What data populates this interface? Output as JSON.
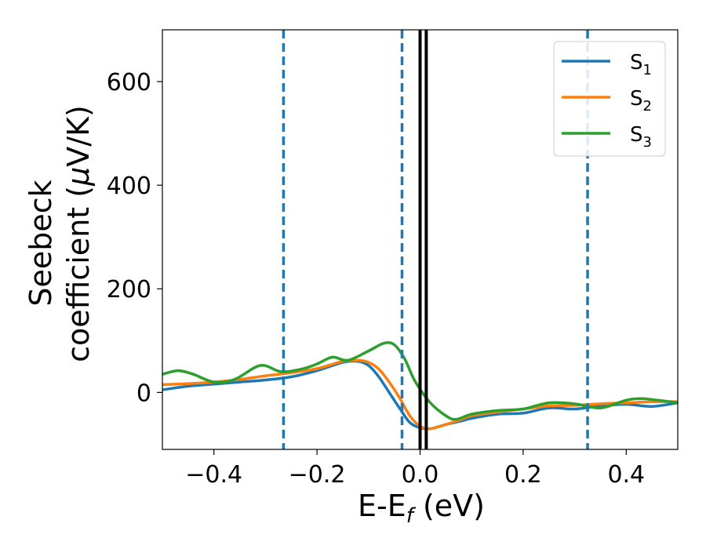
{
  "chart_data": {
    "type": "line",
    "xlabel": "E-E",
    "xlabel_sub": "f",
    "xlabel_unit": " (eV)",
    "ylabel_line1": "Seebeck",
    "ylabel_line2": "coefficient  (",
    "ylabel_mu": "μ",
    "ylabel_unit": "V/K)",
    "xlim": [
      -0.5,
      0.5
    ],
    "ylim": [
      -110,
      700
    ],
    "xticks": [
      -0.4,
      -0.2,
      0.0,
      0.2,
      0.4
    ],
    "xtick_labels": [
      "−0.4",
      "−0.2",
      "0.0",
      "0.2",
      "0.4"
    ],
    "yticks": [
      0,
      200,
      400,
      600
    ],
    "ytick_labels": [
      "0",
      "200",
      "400",
      "600"
    ],
    "grid": false,
    "legend_position": "top-right",
    "colors": {
      "S1": "#1f77b4",
      "S2": "#ff7f0e",
      "S3": "#2ca02c",
      "vline_dashed": "#1f77b4",
      "vline_solid": "#000000"
    },
    "series": [
      {
        "name": "S1",
        "name_main": "S",
        "name_sub": "1",
        "color": "#1f77b4",
        "x": [
          -0.5,
          -0.45,
          -0.4,
          -0.35,
          -0.3,
          -0.25,
          -0.2,
          -0.15,
          -0.12,
          -0.1,
          -0.08,
          -0.06,
          -0.04,
          -0.02,
          0,
          0.02,
          0.05,
          0.08,
          0.1,
          0.15,
          0.2,
          0.25,
          0.3,
          0.35,
          0.4,
          0.45,
          0.5
        ],
        "y": [
          5,
          12,
          16,
          20,
          24,
          30,
          42,
          58,
          60,
          52,
          30,
          0,
          -30,
          -58,
          -68,
          -70,
          -62,
          -55,
          -50,
          -42,
          -40,
          -30,
          -32,
          -26,
          -23,
          -27,
          -20
        ]
      },
      {
        "name": "S2",
        "name_main": "S",
        "name_sub": "2",
        "color": "#ff7f0e",
        "x": [
          -0.5,
          -0.45,
          -0.4,
          -0.35,
          -0.3,
          -0.25,
          -0.2,
          -0.15,
          -0.12,
          -0.1,
          -0.08,
          -0.06,
          -0.04,
          -0.02,
          0,
          0.02,
          0.05,
          0.08,
          0.1,
          0.15,
          0.2,
          0.25,
          0.3,
          0.35,
          0.4,
          0.45,
          0.5
        ],
        "y": [
          15,
          17,
          20,
          25,
          32,
          38,
          46,
          60,
          62,
          58,
          45,
          20,
          -10,
          -45,
          -65,
          -70,
          -62,
          -52,
          -45,
          -38,
          -32,
          -26,
          -25,
          -22,
          -20,
          -18,
          -18
        ]
      },
      {
        "name": "S3",
        "name_main": "S",
        "name_sub": "3",
        "color": "#2ca02c",
        "x": [
          -0.5,
          -0.47,
          -0.44,
          -0.4,
          -0.36,
          -0.31,
          -0.27,
          -0.23,
          -0.2,
          -0.17,
          -0.14,
          -0.1,
          -0.07,
          -0.05,
          -0.03,
          -0.01,
          0.02,
          0.05,
          0.07,
          0.1,
          0.15,
          0.2,
          0.25,
          0.3,
          0.35,
          0.4,
          0.43,
          0.46,
          0.5
        ],
        "y": [
          35,
          42,
          35,
          20,
          25,
          52,
          40,
          45,
          55,
          68,
          62,
          80,
          95,
          92,
          65,
          22,
          -20,
          -45,
          -52,
          -42,
          -35,
          -32,
          -20,
          -22,
          -30,
          -15,
          -12,
          -15,
          -20
        ]
      }
    ],
    "vlines_dashed": [
      -0.265,
      -0.035,
      0.325
    ],
    "vlines_solid": [
      0.0,
      0.012
    ]
  }
}
